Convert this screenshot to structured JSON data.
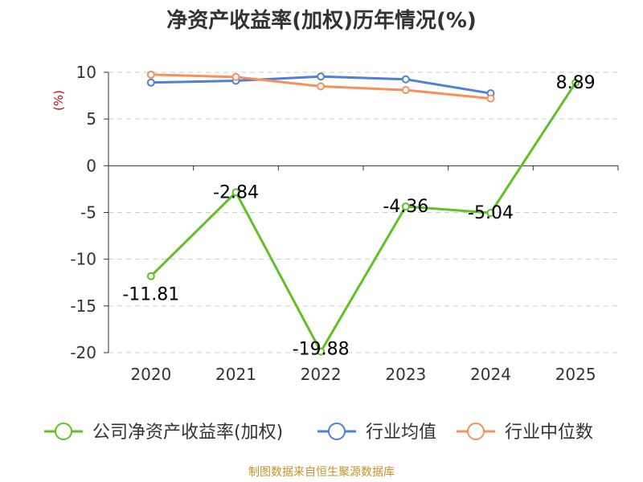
{
  "chart_data": {
    "type": "line",
    "title": "净资产收益率(加权)历年情况(%)",
    "ylabel": "(%)",
    "xlabel": "",
    "categories": [
      "2020",
      "2021",
      "2022",
      "2023",
      "2024",
      "2025"
    ],
    "ylim": [
      -20,
      10
    ],
    "yticks": [
      10,
      5,
      0,
      -5,
      -10,
      -15,
      -20
    ],
    "grid": true,
    "legend_position": "bottom",
    "series": [
      {
        "name": "公司净资产收益率(加权)",
        "color": "#5fc127",
        "values": [
          -11.81,
          -2.84,
          -19.88,
          -4.36,
          -5.04,
          8.89
        ],
        "data_labels": [
          "-11.81",
          "-2.84",
          "-19.88",
          "-4.36",
          "-5.04",
          "8.89"
        ]
      },
      {
        "name": "行业均值",
        "color": "#4f7fd6",
        "values": [
          8.9,
          9.1,
          9.55,
          9.25,
          7.75,
          null
        ]
      },
      {
        "name": "行业中位数",
        "color": "#f7905a",
        "values": [
          9.75,
          9.5,
          8.5,
          8.1,
          7.2,
          null
        ]
      }
    ]
  },
  "colors": {
    "title": "#333333",
    "ylabel": "#d0021b",
    "source": "#c8922a",
    "axis": "#333333",
    "grid": "#cccccc"
  },
  "source_text": "制图数据来自恒生聚源数据库"
}
